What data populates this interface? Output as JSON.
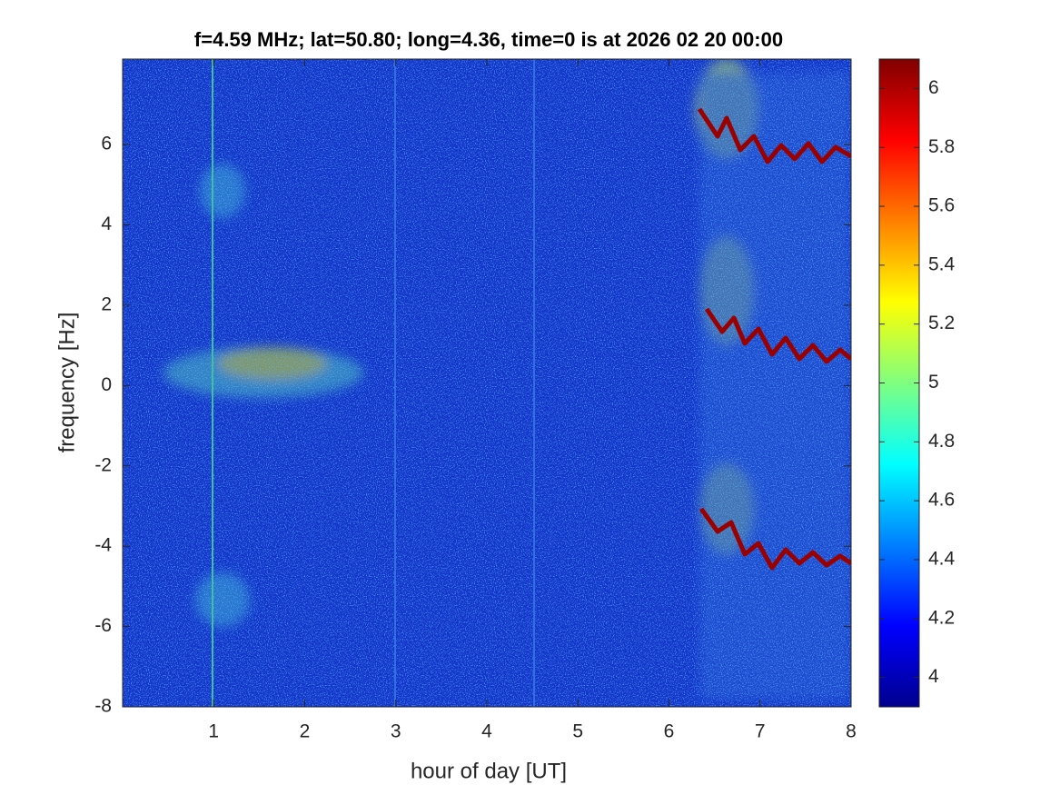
{
  "chart_data": {
    "type": "heatmap",
    "title": "f=4.59 MHz;  lat=50.80; long=4.36, time=0 is at 2026 02 20 00:00",
    "x_label": "hour of day [UT]",
    "y_label": "frequency [Hz]",
    "xlim": [
      0,
      8
    ],
    "xticks": [
      1,
      2,
      3,
      4,
      5,
      6,
      7,
      8
    ],
    "ylim": [
      -8,
      8.13
    ],
    "yticks": [
      -8,
      -6,
      -4,
      -2,
      0,
      2,
      4,
      6
    ],
    "colormap": "jet",
    "clim": [
      3.9,
      6.1
    ],
    "cticks": [
      4,
      4.2,
      4.4,
      4.6,
      4.8,
      5,
      5.2,
      5.4,
      5.6,
      5.8,
      6
    ]
  }
}
